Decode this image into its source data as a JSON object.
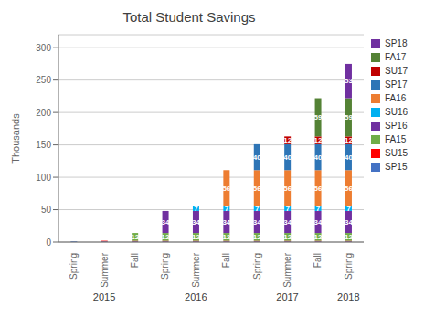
{
  "chart_data": {
    "type": "bar",
    "stacked": true,
    "title": "Total Student Savings",
    "y_label": "Thousands",
    "categories": [
      "Spring",
      "Summer",
      "Fall",
      "Spring",
      "Summer",
      "Fall",
      "Spring",
      "Summer",
      "Fall",
      "Spring"
    ],
    "annotations": [
      {
        "text": "2015",
        "category_index": 1
      },
      {
        "text": "2016",
        "category_index": 4
      },
      {
        "text": "2017",
        "category_index": 7
      },
      {
        "text": "2018",
        "category_index": 9
      }
    ],
    "series": [
      {
        "name": "SP15",
        "color": "#4472C4",
        "values": [
          1,
          1,
          1,
          1,
          1,
          1,
          1,
          1,
          1,
          1
        ],
        "value_labels": [
          null,
          null,
          null,
          null,
          null,
          null,
          null,
          null,
          null,
          null
        ]
      },
      {
        "name": "SU15",
        "color": "#FF0000",
        "values": [
          0,
          1,
          1,
          1,
          1,
          1,
          1,
          1,
          1,
          1
        ],
        "value_labels": [
          null,
          null,
          null,
          null,
          null,
          null,
          null,
          null,
          null,
          null
        ]
      },
      {
        "name": "FA15",
        "color": "#70AD47",
        "values": [
          0,
          0,
          12,
          12,
          12,
          12,
          12,
          12,
          12,
          12
        ],
        "value_labels": [
          null,
          null,
          "12",
          "12",
          "12",
          "12",
          "12",
          "12",
          "12",
          "12"
        ]
      },
      {
        "name": "SP16",
        "color": "#7030A0",
        "values": [
          0,
          0,
          0,
          34,
          34,
          34,
          34,
          34,
          34,
          34
        ],
        "value_labels": [
          null,
          null,
          null,
          "34",
          "34",
          "34",
          "34",
          "34",
          "34",
          "34"
        ]
      },
      {
        "name": "SU16",
        "color": "#00B0F0",
        "values": [
          0,
          0,
          0,
          0,
          7,
          7,
          7,
          7,
          7,
          7
        ],
        "value_labels": [
          null,
          null,
          null,
          null,
          "7",
          "7",
          "7",
          "7",
          "7",
          "7"
        ]
      },
      {
        "name": "FA16",
        "color": "#ED7D31",
        "values": [
          0,
          0,
          0,
          0,
          0,
          56,
          56,
          56,
          56,
          56
        ],
        "value_labels": [
          null,
          null,
          null,
          null,
          null,
          "56",
          "56",
          "56",
          "56",
          "56"
        ]
      },
      {
        "name": "SP17",
        "color": "#2E75B6",
        "values": [
          0,
          0,
          0,
          0,
          0,
          0,
          40,
          40,
          40,
          40
        ],
        "value_labels": [
          null,
          null,
          null,
          null,
          null,
          null,
          "40",
          "40",
          "40",
          "40"
        ]
      },
      {
        "name": "SU17",
        "color": "#C00000",
        "values": [
          0,
          0,
          0,
          0,
          0,
          0,
          0,
          12,
          12,
          12
        ],
        "value_labels": [
          null,
          null,
          null,
          null,
          null,
          null,
          null,
          "12",
          "12",
          "12"
        ]
      },
      {
        "name": "FA17",
        "color": "#548235",
        "values": [
          0,
          0,
          0,
          0,
          0,
          0,
          0,
          0,
          59,
          59
        ],
        "value_labels": [
          null,
          null,
          null,
          null,
          null,
          null,
          null,
          null,
          "59",
          "59"
        ]
      },
      {
        "name": "SP18",
        "color": "#7030A0",
        "values": [
          0,
          0,
          0,
          0,
          0,
          0,
          0,
          0,
          0,
          53
        ],
        "value_labels": [
          null,
          null,
          null,
          null,
          null,
          null,
          null,
          null,
          null,
          "53"
        ]
      }
    ],
    "ylim": [
      0,
      320
    ],
    "yticks": [
      0,
      50,
      100,
      150,
      200,
      250,
      300
    ],
    "grid": true,
    "legend": "right",
    "data_labels": true
  }
}
